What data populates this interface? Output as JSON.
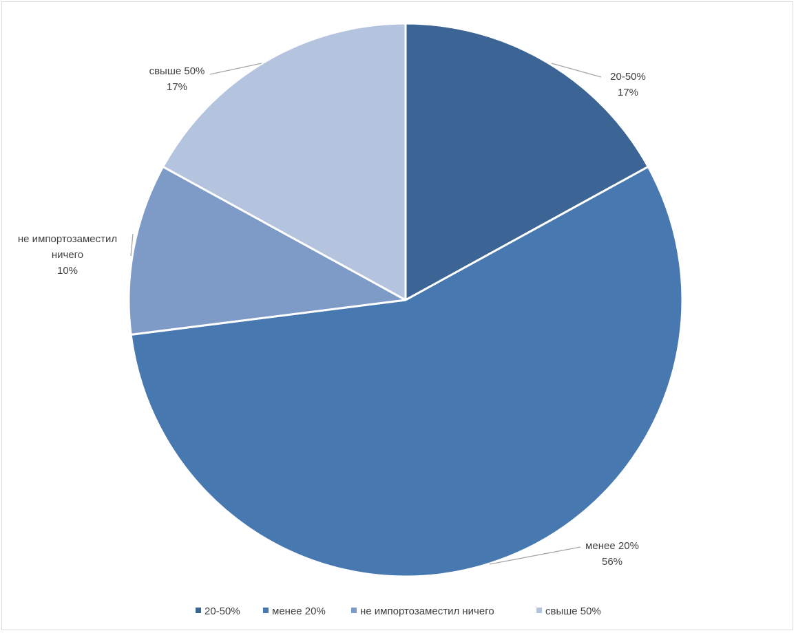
{
  "chart_data": {
    "type": "pie",
    "categories": [
      "20-50%",
      "менее 20%",
      "не импортозаместил ничего",
      "свыше 50%"
    ],
    "values": [
      17,
      56,
      10,
      17
    ],
    "data_labels": [
      {
        "lines": [
          "20-50%",
          "17%"
        ]
      },
      {
        "lines": [
          "менее 20%",
          "56%"
        ]
      },
      {
        "lines": [
          "не импортозаместил",
          "ничего",
          "10%"
        ]
      },
      {
        "lines": [
          "свыше 50%",
          "17%"
        ]
      }
    ],
    "colors": [
      "#3c6494",
      "#4878b0",
      "#7e9bc8",
      "#b4c3de"
    ],
    "start_angle_deg": 0,
    "direction": "clockwise",
    "legend_position": "bottom"
  }
}
